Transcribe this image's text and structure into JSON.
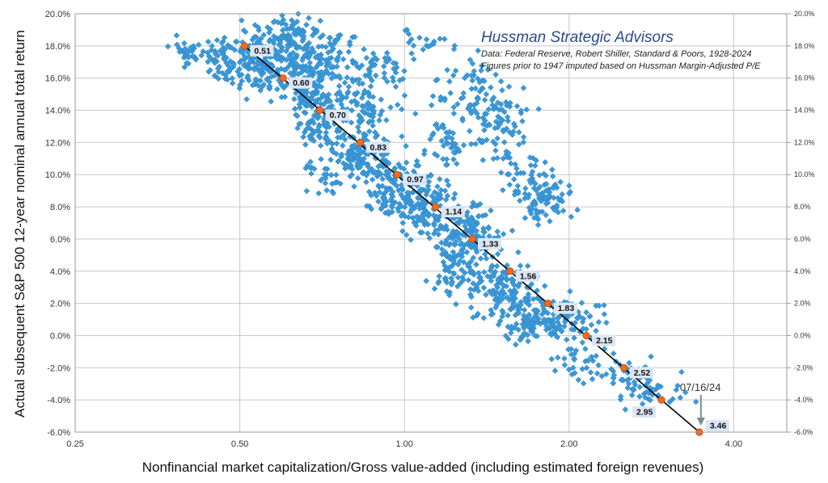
{
  "chart_data": {
    "type": "scatter",
    "title": "Hussman Strategic Advisors",
    "subtitle_lines": [
      "Data: Federal Reserve, Robert Shiller, Standard & Poors, 1928-2024",
      "Figures prior to 1947 imputed based on Hussman Margin-Adjusted P/E"
    ],
    "xlabel": "Nonfinancial market capitalization/Gross value-added (including estimated foreign revenues)",
    "ylabel": "Actual subsequent S&P 500 12-year nominal annual total return",
    "x_scale": "log",
    "xlim": [
      0.25,
      5.0
    ],
    "ylim": [
      -6.0,
      20.0
    ],
    "x_ticks": [
      0.25,
      0.5,
      1.0,
      2.0,
      4.0
    ],
    "x_tick_labels": [
      "0.25",
      "0.50",
      "1.00",
      "2.00",
      "4.00"
    ],
    "y_ticks": [
      20,
      18,
      16,
      14,
      12,
      10,
      8,
      6,
      4,
      2,
      0,
      -2,
      -4,
      -6
    ],
    "y_tick_labels": [
      "20.0%",
      "18.0%",
      "16.0%",
      "14.0%",
      "12.0%",
      "10.0%",
      "8.0%",
      "6.0%",
      "4.0%",
      "2.0%",
      "0.0%",
      "-2.0%",
      "-4.0%",
      "-6.0%"
    ],
    "grid": true,
    "scatter_color": "#3a9ad9",
    "fit_line": {
      "color": "#000000",
      "points": [
        {
          "x": 0.51,
          "y": 18.0,
          "label": "0.51"
        },
        {
          "x": 0.6,
          "y": 16.0,
          "label": "0.60"
        },
        {
          "x": 0.7,
          "y": 14.0,
          "label": "0.70"
        },
        {
          "x": 0.83,
          "y": 12.0,
          "label": "0.83"
        },
        {
          "x": 0.97,
          "y": 10.0,
          "label": "0.97"
        },
        {
          "x": 1.14,
          "y": 8.0,
          "label": "1.14"
        },
        {
          "x": 1.33,
          "y": 6.0,
          "label": "1.33"
        },
        {
          "x": 1.56,
          "y": 4.0,
          "label": "1.56"
        },
        {
          "x": 1.83,
          "y": 2.0,
          "label": "1.83"
        },
        {
          "x": 2.15,
          "y": 0.0,
          "label": "2.15"
        },
        {
          "x": 2.52,
          "y": -2.0,
          "label": "2.52"
        },
        {
          "x": 2.95,
          "y": -4.0,
          "label": "2.95"
        },
        {
          "x": 3.46,
          "y": -6.0,
          "label": "3.46"
        }
      ]
    },
    "marker_color": "#f26b1d",
    "label_box_color": "#dbe6f4",
    "annotation": {
      "text": "07/16/24",
      "x": 3.46,
      "y": -6.0
    },
    "clusters": [
      {
        "x": 0.4,
        "y": 17.5,
        "sx": 0.03,
        "sy": 0.5,
        "n": 30
      },
      {
        "x": 0.46,
        "y": 17.2,
        "sx": 0.04,
        "sy": 0.6,
        "n": 60
      },
      {
        "x": 0.55,
        "y": 17.0,
        "sx": 0.06,
        "sy": 1.0,
        "n": 160
      },
      {
        "x": 0.62,
        "y": 18.3,
        "sx": 0.05,
        "sy": 0.8,
        "n": 90
      },
      {
        "x": 0.67,
        "y": 16.0,
        "sx": 0.05,
        "sy": 1.0,
        "n": 100
      },
      {
        "x": 0.75,
        "y": 17.0,
        "sx": 0.07,
        "sy": 1.2,
        "n": 80
      },
      {
        "x": 0.7,
        "y": 13.5,
        "sx": 0.05,
        "sy": 1.0,
        "n": 90
      },
      {
        "x": 0.85,
        "y": 14.0,
        "sx": 0.08,
        "sy": 1.2,
        "n": 90
      },
      {
        "x": 0.82,
        "y": 11.0,
        "sx": 0.06,
        "sy": 0.8,
        "n": 110
      },
      {
        "x": 0.72,
        "y": 10.5,
        "sx": 0.04,
        "sy": 0.8,
        "n": 30
      },
      {
        "x": 0.95,
        "y": 9.3,
        "sx": 0.06,
        "sy": 1.0,
        "n": 110
      },
      {
        "x": 1.1,
        "y": 8.0,
        "sx": 0.06,
        "sy": 1.0,
        "n": 120
      },
      {
        "x": 1.3,
        "y": 6.5,
        "sx": 0.07,
        "sy": 1.0,
        "n": 120
      },
      {
        "x": 1.25,
        "y": 4.5,
        "sx": 0.06,
        "sy": 1.2,
        "n": 80
      },
      {
        "x": 1.5,
        "y": 3.0,
        "sx": 0.07,
        "sy": 1.0,
        "n": 110
      },
      {
        "x": 1.7,
        "y": 1.2,
        "sx": 0.07,
        "sy": 0.8,
        "n": 100
      },
      {
        "x": 2.0,
        "y": 1.0,
        "sx": 0.08,
        "sy": 0.7,
        "n": 70
      },
      {
        "x": 2.05,
        "y": -1.5,
        "sx": 0.05,
        "sy": 0.6,
        "n": 30
      },
      {
        "x": 2.55,
        "y": -2.6,
        "sx": 0.08,
        "sy": 0.6,
        "n": 50
      },
      {
        "x": 2.85,
        "y": -3.5,
        "sx": 0.06,
        "sy": 0.5,
        "n": 30
      },
      {
        "x": 1.35,
        "y": 15.0,
        "sx": 0.08,
        "sy": 1.0,
        "n": 80
      },
      {
        "x": 1.5,
        "y": 12.8,
        "sx": 0.06,
        "sy": 1.0,
        "n": 60
      },
      {
        "x": 1.2,
        "y": 12.0,
        "sx": 0.05,
        "sy": 0.9,
        "n": 40
      },
      {
        "x": 1.8,
        "y": 8.5,
        "sx": 0.06,
        "sy": 0.8,
        "n": 80
      },
      {
        "x": 1.65,
        "y": 10.0,
        "sx": 0.05,
        "sy": 0.6,
        "n": 30
      },
      {
        "x": 1.1,
        "y": 18.2,
        "sx": 0.05,
        "sy": 0.4,
        "n": 20
      },
      {
        "x": 0.92,
        "y": 16.8,
        "sx": 0.05,
        "sy": 0.6,
        "n": 30
      }
    ]
  }
}
